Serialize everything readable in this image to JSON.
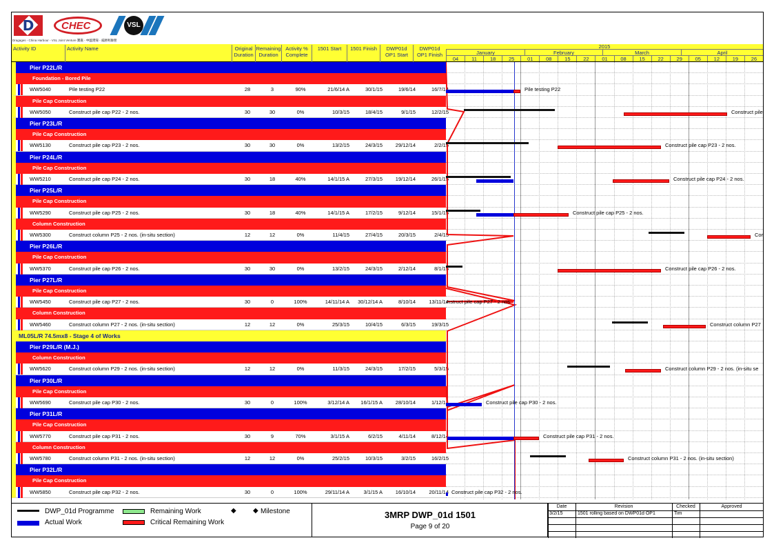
{
  "logos": {
    "d_letter": "D",
    "chec": "CHEC",
    "vsl": "VSL",
    "caption": "Dragages - China Harbour - VSL Joint Venture 寶嘉 - 中國港灣 - 威勝利聯營"
  },
  "columns": {
    "activity_id": "Activity ID",
    "activity_name": "Activity Name",
    "orig_dur_1": "Original",
    "orig_dur_2": "Duration",
    "rem_dur_1": "Remaining",
    "rem_dur_2": "Duration",
    "pct_1": "Activity %",
    "pct_2": "Complete",
    "start": "1501 Start",
    "finish": "1501 Finish",
    "op1_start_1": "DWP01d",
    "op1_start_2": "OP1 Start",
    "op1_finish_1": "DWP01d",
    "op1_finish_2": "OP1 Finish"
  },
  "timescale": {
    "year": "2015",
    "months": [
      "January",
      "February",
      "March",
      "April"
    ],
    "weeks": [
      "04",
      "11",
      "18",
      "25",
      "01",
      "08",
      "15",
      "22",
      "01",
      "08",
      "15",
      "22",
      "29",
      "05",
      "12",
      "19",
      "26"
    ]
  },
  "rows": [
    {
      "kind": "pier",
      "label": "Pier P22L/R"
    },
    {
      "kind": "wbs",
      "label": "Foundation - Bored Pile"
    },
    {
      "kind": "act",
      "id": "WW5040",
      "name": "Pile testing P22",
      "od": "28",
      "rd": "3",
      "pct": "90%",
      "start": "21/6/14 A",
      "finish": "30/1/15",
      "op_s": "19/6/14",
      "op_f": "16/7/14"
    },
    {
      "kind": "wbs",
      "label": "Pile Cap Construction"
    },
    {
      "kind": "act",
      "id": "WW5050",
      "name": "Construct pile cap P22 - 2 nos.",
      "od": "30",
      "rd": "30",
      "pct": "0%",
      "start": "10/3/15",
      "finish": "18/4/15",
      "op_s": "9/1/15",
      "op_f": "12/2/15"
    },
    {
      "kind": "pier",
      "label": "Pier P23L/R"
    },
    {
      "kind": "wbs",
      "label": "Pile Cap Construction"
    },
    {
      "kind": "act",
      "id": "WW5130",
      "name": "Construct pile cap P23 - 2 nos.",
      "od": "30",
      "rd": "30",
      "pct": "0%",
      "start": "13/2/15",
      "finish": "24/3/15",
      "op_s": "29/12/14",
      "op_f": "2/2/15"
    },
    {
      "kind": "pier",
      "label": "Pier P24L/R"
    },
    {
      "kind": "wbs",
      "label": "Pile Cap Construction"
    },
    {
      "kind": "act",
      "id": "WW5210",
      "name": "Construct pile cap P24 - 2 nos.",
      "od": "30",
      "rd": "18",
      "pct": "40%",
      "start": "14/1/15 A",
      "finish": "27/3/15",
      "op_s": "19/12/14",
      "op_f": "26/1/15"
    },
    {
      "kind": "pier",
      "label": "Pier P25L/R"
    },
    {
      "kind": "wbs",
      "label": "Pile Cap Construction"
    },
    {
      "kind": "act",
      "id": "WW5290",
      "name": "Construct pile cap P25 - 2 nos.",
      "od": "30",
      "rd": "18",
      "pct": "40%",
      "start": "14/1/15 A",
      "finish": "17/2/15",
      "op_s": "9/12/14",
      "op_f": "15/1/15"
    },
    {
      "kind": "wbs",
      "label": "Column Construction"
    },
    {
      "kind": "act",
      "id": "WW5300",
      "name": "Construct column P25 - 2 nos. (in-situ section)",
      "od": "12",
      "rd": "12",
      "pct": "0%",
      "start": "11/4/15",
      "finish": "27/4/15",
      "op_s": "20/3/15",
      "op_f": "2/4/15"
    },
    {
      "kind": "pier",
      "label": "Pier P26L/R"
    },
    {
      "kind": "wbs",
      "label": "Pile Cap Construction"
    },
    {
      "kind": "act",
      "id": "WW5370",
      "name": "Construct pile cap P26 - 2 nos.",
      "od": "30",
      "rd": "30",
      "pct": "0%",
      "start": "13/2/15",
      "finish": "24/3/15",
      "op_s": "2/12/14",
      "op_f": "8/1/15"
    },
    {
      "kind": "pier",
      "label": "Pier P27L/R"
    },
    {
      "kind": "wbs",
      "label": "Pile Cap Construction"
    },
    {
      "kind": "act",
      "id": "WW5450",
      "name": "Construct pile cap P27 - 2 nos.",
      "od": "30",
      "rd": "0",
      "pct": "100%",
      "start": "14/11/14 A",
      "finish": "30/12/14 A",
      "op_s": "8/10/14",
      "op_f": "13/11/14"
    },
    {
      "kind": "wbs",
      "label": "Column Construction"
    },
    {
      "kind": "act",
      "id": "WW5460",
      "name": "Construct column P27 - 2 nos. (in-situ section)",
      "od": "12",
      "rd": "12",
      "pct": "0%",
      "start": "25/3/15",
      "finish": "10/4/15",
      "op_s": "6/3/15",
      "op_f": "19/3/15"
    },
    {
      "kind": "stage",
      "label": "ML05L/R 74.5mx8 - Stage 4 of Works"
    },
    {
      "kind": "pier",
      "label": "Pier P29L/R (M.J.)"
    },
    {
      "kind": "wbs",
      "label": "Column Construction"
    },
    {
      "kind": "act",
      "id": "WW5620",
      "name": "Construct column P29 - 2 nos. (in-situ section)",
      "od": "12",
      "rd": "12",
      "pct": "0%",
      "start": "11/3/15",
      "finish": "24/3/15",
      "op_s": "17/2/15",
      "op_f": "5/3/15"
    },
    {
      "kind": "pier",
      "label": "Pier P30L/R"
    },
    {
      "kind": "wbs",
      "label": "Pile Cap Construction"
    },
    {
      "kind": "act",
      "id": "WW5690",
      "name": "Construct pile cap P30 - 2 nos.",
      "od": "30",
      "rd": "0",
      "pct": "100%",
      "start": "3/12/14 A",
      "finish": "16/1/15 A",
      "op_s": "28/10/14",
      "op_f": "1/12/14"
    },
    {
      "kind": "pier",
      "label": "Pier P31L/R"
    },
    {
      "kind": "wbs",
      "label": "Pile Cap Construction"
    },
    {
      "kind": "act",
      "id": "WW5770",
      "name": "Construct pile cap P31 - 2 nos.",
      "od": "30",
      "rd": "9",
      "pct": "70%",
      "start": "3/1/15 A",
      "finish": "6/2/15",
      "op_s": "4/11/14",
      "op_f": "8/12/14"
    },
    {
      "kind": "wbs",
      "label": "Column Construction"
    },
    {
      "kind": "act",
      "id": "WW5780",
      "name": "Construct column P31 - 2 nos. (in-situ section)",
      "od": "12",
      "rd": "12",
      "pct": "0%",
      "start": "25/2/15",
      "finish": "10/3/15",
      "op_s": "3/2/15",
      "op_f": "16/2/15"
    },
    {
      "kind": "pier",
      "label": "Pier P32L/R"
    },
    {
      "kind": "wbs",
      "label": "Pile Cap Construction"
    },
    {
      "kind": "act",
      "id": "WW5850",
      "name": "Construct pile cap P32 - 2 nos.",
      "od": "30",
      "rd": "0",
      "pct": "100%",
      "start": "29/11/14 A",
      "finish": "3/1/15 A",
      "op_s": "16/10/14",
      "op_f": "20/11/14"
    }
  ],
  "gantt_bars": [
    {
      "row": 2,
      "black": null,
      "blue": [
        0,
        98
      ],
      "red": [
        98,
        108
      ],
      "label": "Pile testing P22",
      "label_at": 114
    },
    {
      "row": 4,
      "black": [
        26,
        158
      ],
      "blue": null,
      "red": [
        258,
        408
      ],
      "label": "Construct pile",
      "label_at": 414
    },
    {
      "row": 7,
      "black": [
        0,
        120
      ],
      "blue": null,
      "red": [
        162,
        312
      ],
      "label": "Construct pile cap P23 - 2 nos.",
      "label_at": 318
    },
    {
      "row": 10,
      "black": [
        0,
        94
      ],
      "blue": [
        44,
        98
      ],
      "red": [
        242,
        324
      ],
      "label": "Construct pile cap P24 - 2 nos.",
      "label_at": 330
    },
    {
      "row": 13,
      "black": [
        0,
        50
      ],
      "blue": [
        44,
        98
      ],
      "red": [
        98,
        178
      ],
      "label": "Construct pile cap P25 - 2 nos.",
      "label_at": 184
    },
    {
      "row": 15,
      "black": [
        294,
        346
      ],
      "blue": null,
      "red": [
        379,
        442
      ],
      "label": "Cor",
      "label_at": 448
    },
    {
      "row": 18,
      "black": [
        0,
        24
      ],
      "blue": null,
      "red": [
        162,
        312
      ],
      "label": "Construct pile cap P26 - 2 nos.",
      "label_at": 318
    },
    {
      "row": 21,
      "black": null,
      "blue": null,
      "red": null,
      "label": "onstruct pile cap P27 - 2 nos.",
      "label_at": -2
    },
    {
      "row": 23,
      "black": [
        241,
        293
      ],
      "blue": null,
      "red": [
        315,
        377
      ],
      "label": "Construct column P27",
      "label_at": 383
    },
    {
      "row": 27,
      "black": [
        176,
        238
      ],
      "blue": null,
      "red": [
        260,
        312
      ],
      "label": "Construct column P29 - 2 nos. (in-situ se",
      "label_at": 318
    },
    {
      "row": 30,
      "black": null,
      "blue": [
        0,
        52
      ],
      "red": null,
      "label": "Construct pile cap P30 - 2 nos.",
      "label_at": 58
    },
    {
      "row": 33,
      "black": null,
      "blue": [
        2,
        98
      ],
      "red": [
        98,
        135
      ],
      "label": "Construct pile cap P31 - 2 nos.",
      "label_at": 141
    },
    {
      "row": 35,
      "black": [
        122,
        174
      ],
      "blue": null,
      "red": [
        207,
        258
      ],
      "label": "Construct column P31 - 2 nos. (in-situ section)",
      "label_at": 264
    },
    {
      "row": 38,
      "black": null,
      "blue": [
        0,
        3
      ],
      "red": null,
      "label": "Construct pile cap P32 - 2 nos.",
      "label_at": 8
    }
  ],
  "legend": {
    "programme": "DWP_01d Programme",
    "actual": "Actual Work",
    "remaining": "Remaining Work",
    "critical": "Critical Remaining Work",
    "milestone": "Milestone",
    "milestone_glyph": "◆"
  },
  "title_block": {
    "title": "3MRP DWP_01d 1501",
    "page": "Page 9 of 20"
  },
  "revision": {
    "h_date": "Date",
    "h_revision": "Revision",
    "h_checked": "Checked",
    "h_approved": "Approved",
    "date": "3/2/15",
    "revision": "1501 rolling based on DWP01d OP1",
    "checked": "Tim",
    "approved": ""
  },
  "colors": {
    "header_yellow": "#ffff33",
    "pier_blue": "#0000dd",
    "wbs_red": "#ff1a1a",
    "programme_black": "#111111",
    "remaining_green": "#8ee88e"
  }
}
